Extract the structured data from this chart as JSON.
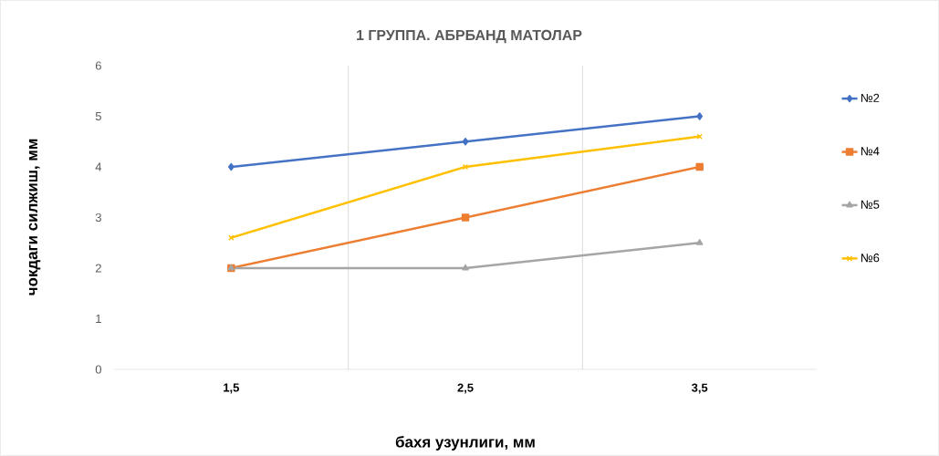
{
  "chart_data": {
    "type": "line",
    "title": "1 ГРУППА. АБРБАНД МАТОЛАР",
    "xlabel": "бахя узунлиги, мм",
    "ylabel": "чокдаги силжиш, мм",
    "categories": [
      "1,5",
      "2,5",
      "3,5"
    ],
    "series": [
      {
        "name": "№2",
        "color": "#4472c4",
        "marker": "diamond",
        "values": [
          4,
          4.5,
          5
        ]
      },
      {
        "name": "№4",
        "color": "#ed7d31",
        "marker": "square",
        "values": [
          2,
          3,
          4
        ]
      },
      {
        "name": "№5",
        "color": "#a5a5a5",
        "marker": "triangle",
        "values": [
          2,
          2,
          2.5
        ]
      },
      {
        "name": "№6",
        "color": "#ffc000",
        "marker": "cross",
        "values": [
          2.6,
          4,
          4.6
        ]
      }
    ],
    "ylim": [
      0,
      6
    ],
    "yticks": [
      0,
      1,
      2,
      3,
      4,
      5,
      6
    ],
    "grid": "x",
    "legend": "right",
    "line_style": "solid"
  }
}
